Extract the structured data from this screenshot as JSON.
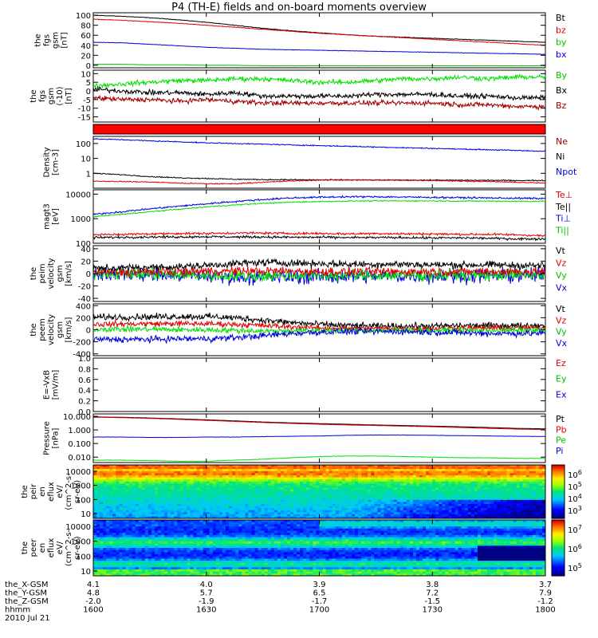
{
  "title": "P4 (TH-E) fields and on-board moments overview",
  "date_label": "2010 Jul 21",
  "colors": {
    "black": "#000000",
    "red": "#e00000",
    "dark_red": "#a00000",
    "green": "#00e000",
    "blue": "#0000e0"
  },
  "chart_data": [
    {
      "type": "line",
      "ylabel": [
        "the",
        "fgs",
        "gsm",
        "[nT]"
      ],
      "ylim": [
        -5,
        105
      ],
      "yticks": [
        "100",
        "80",
        "60",
        "40",
        "20",
        "0"
      ],
      "ytick_values": [
        100,
        80,
        60,
        40,
        20,
        0
      ],
      "legend": [
        {
          "label": "Bt",
          "color": "#000000"
        },
        {
          "label": "bz",
          "color": "#e00000"
        },
        {
          "label": "by",
          "color": "#00c000"
        },
        {
          "label": "bx",
          "color": "#0000e0"
        }
      ],
      "series": [
        {
          "color": "#000000",
          "noise": 0.5,
          "values": [
            100,
            98,
            95,
            91,
            86,
            80,
            74,
            69,
            65,
            61,
            58,
            56,
            54,
            52,
            50,
            48,
            46
          ]
        },
        {
          "color": "#e00000",
          "noise": 0.5,
          "values": [
            92,
            90,
            87,
            84,
            80,
            76,
            72,
            68,
            64,
            61,
            58,
            55,
            52,
            49,
            46,
            43,
            40
          ]
        },
        {
          "color": "#0000e0",
          "noise": 0.4,
          "values": [
            46,
            45,
            42,
            39,
            36,
            34,
            32,
            31,
            30,
            29,
            28,
            27,
            26,
            25,
            24,
            23,
            22
          ]
        },
        {
          "color": "#00c000",
          "noise": 0.2,
          "values": [
            2,
            2,
            1,
            1,
            0,
            0,
            -1,
            -1,
            -1,
            -1,
            -1,
            -1,
            -1,
            -1,
            -1,
            -1,
            -1
          ]
        }
      ]
    },
    {
      "type": "line",
      "ylabel": [
        "the",
        "fgs",
        "gsm",
        "(-10)",
        "[nT]"
      ],
      "ylim": [
        -18,
        12
      ],
      "yticks": [
        "10",
        "5",
        "0",
        "-5",
        "-10",
        "-15"
      ],
      "ytick_values": [
        10,
        5,
        0,
        -5,
        -10,
        -15
      ],
      "legend": [
        {
          "label": "By",
          "color": "#00c000"
        },
        {
          "label": "Bx",
          "color": "#000000"
        },
        {
          "label": "Bz",
          "color": "#a00000"
        }
      ],
      "series": [
        {
          "color": "#00e000",
          "noise": 1.2,
          "values": [
            3,
            4,
            5,
            6,
            6,
            7,
            7,
            6,
            5,
            5,
            6,
            7,
            7,
            8,
            7,
            8,
            8
          ]
        },
        {
          "color": "#000000",
          "noise": 1.2,
          "values": [
            1,
            0,
            -1,
            -1,
            -2,
            -1,
            -3,
            -3,
            -3,
            -3,
            -2,
            -2,
            -2,
            -3,
            -3,
            -4,
            -4
          ]
        },
        {
          "color": "#a00000",
          "noise": 1.2,
          "values": [
            -4,
            -5,
            -5,
            -6,
            -5,
            -6,
            -7,
            -7,
            -7,
            -7,
            -7,
            -7,
            -7,
            -8,
            -8,
            -9,
            -9
          ]
        }
      ]
    },
    {
      "type": "bar",
      "ylabel": [],
      "legend": [],
      "series": []
    },
    {
      "type": "line",
      "log": true,
      "ylabel": [
        "Density",
        "[cm-3]"
      ],
      "ylim": [
        0.1,
        300
      ],
      "yticks": [
        "100",
        "10",
        "1"
      ],
      "ytick_values": [
        100,
        10,
        1
      ],
      "legend": [
        {
          "label": "Ne",
          "color": "#a00000"
        },
        {
          "label": "Ni",
          "color": "#000000"
        },
        {
          "label": "Npot",
          "color": "#0000e0"
        }
      ],
      "series": [
        {
          "color": "#0000e0",
          "noise": 0.03,
          "values": [
            200,
            180,
            150,
            130,
            110,
            100,
            90,
            80,
            72,
            65,
            58,
            52,
            47,
            42,
            38,
            34,
            30
          ]
        },
        {
          "color": "#000000",
          "noise": 0.03,
          "values": [
            1.0,
            0.8,
            0.6,
            0.5,
            0.45,
            0.4,
            0.38,
            0.37,
            0.36,
            0.36,
            0.35,
            0.35,
            0.35,
            0.34,
            0.34,
            0.33,
            0.33
          ]
        },
        {
          "color": "#e00000",
          "noise": 0.03,
          "values": [
            0.3,
            0.28,
            0.26,
            0.22,
            0.2,
            0.2,
            0.25,
            0.3,
            0.35,
            0.36,
            0.35,
            0.34,
            0.33,
            0.3,
            0.28,
            0.25,
            0.22
          ]
        }
      ]
    },
    {
      "type": "line",
      "log": true,
      "ylabel": [
        "magt3",
        "[eV]"
      ],
      "ylim": [
        100,
        15000
      ],
      "yticks": [
        "10000",
        "1000",
        "100"
      ],
      "ytick_values": [
        10000,
        1000,
        100
      ],
      "legend": [
        {
          "label": "Te⊥",
          "color": "#e00000"
        },
        {
          "label": "Te||",
          "color": "#000000"
        },
        {
          "label": "Ti⊥",
          "color": "#0000e0"
        },
        {
          "label": "Ti||",
          "color": "#00c000"
        }
      ],
      "series": [
        {
          "color": "#0000e0",
          "noise": 0.03,
          "values": [
            1500,
            1900,
            2500,
            3200,
            4000,
            5000,
            6000,
            7000,
            7500,
            7800,
            7800,
            7600,
            7400,
            7200,
            7000,
            6800,
            6600
          ]
        },
        {
          "color": "#00e000",
          "noise": 0.02,
          "values": [
            1200,
            1500,
            1900,
            2400,
            3000,
            3600,
            4200,
            4700,
            5000,
            5200,
            5300,
            5300,
            5300,
            5200,
            5200,
            5100,
            5100
          ]
        },
        {
          "color": "#e00000",
          "noise": 0.04,
          "values": [
            220,
            230,
            240,
            250,
            250,
            260,
            260,
            250,
            250,
            240,
            250,
            240,
            240,
            230,
            230,
            220,
            200
          ]
        },
        {
          "color": "#000000",
          "noise": 0.04,
          "values": [
            170,
            175,
            180,
            180,
            185,
            180,
            180,
            175,
            175,
            170,
            170,
            170,
            165,
            165,
            160,
            150,
            150
          ]
        }
      ]
    },
    {
      "type": "line",
      "ylabel": [
        "the",
        "peim",
        "velocity",
        "gsm",
        "[km/s]"
      ],
      "ylim": [
        -45,
        45
      ],
      "yticks": [
        "40",
        "20",
        "0",
        "-20",
        "-40"
      ],
      "ytick_values": [
        40,
        20,
        0,
        -20,
        -40
      ],
      "legend": [
        {
          "label": "Vt",
          "color": "#000000"
        },
        {
          "label": "Vz",
          "color": "#e00000"
        },
        {
          "label": "Vy",
          "color": "#00c000"
        },
        {
          "label": "Vx",
          "color": "#0000e0"
        }
      ],
      "series": [
        {
          "color": "#0000e0",
          "noise": 10,
          "values": [
            0,
            0,
            -2,
            -3,
            -4,
            -6,
            -6,
            -5,
            -5,
            -4,
            -4,
            -4,
            -4,
            -3,
            -3,
            -3,
            -3
          ]
        },
        {
          "color": "#00e000",
          "noise": 8,
          "values": [
            0,
            0,
            -1,
            -2,
            -3,
            -4,
            -4,
            -3,
            -3,
            -3,
            -3,
            -3,
            -2,
            -2,
            -2,
            -2,
            -2
          ]
        },
        {
          "color": "#e00000",
          "noise": 6,
          "values": [
            2,
            2,
            3,
            3,
            4,
            4,
            4,
            4,
            3,
            3,
            3,
            3,
            3,
            3,
            3,
            3,
            3
          ]
        },
        {
          "color": "#000000",
          "noise": 5,
          "values": [
            8,
            9,
            10,
            11,
            13,
            16,
            18,
            17,
            16,
            15,
            15,
            15,
            14,
            14,
            14,
            13,
            13
          ]
        }
      ]
    },
    {
      "type": "line",
      "ylabel": [
        "the",
        "peem",
        "velocity",
        "gsm",
        "[km/s]"
      ],
      "ylim": [
        -430,
        430
      ],
      "yticks": [
        "400",
        "200",
        "0",
        "-200",
        "-400"
      ],
      "ytick_values": [
        400,
        200,
        0,
        -200,
        -400
      ],
      "legend": [
        {
          "label": "Vt",
          "color": "#000000"
        },
        {
          "label": "Vz",
          "color": "#e00000"
        },
        {
          "label": "Vy",
          "color": "#00c000"
        },
        {
          "label": "Vx",
          "color": "#0000e0"
        }
      ],
      "series": [
        {
          "color": "#000000",
          "noise": 45,
          "values": [
            210,
            210,
            215,
            220,
            220,
            200,
            160,
            120,
            90,
            70,
            60,
            60,
            60,
            70,
            70,
            70,
            70
          ]
        },
        {
          "color": "#e00000",
          "noise": 40,
          "values": [
            90,
            95,
            100,
            100,
            100,
            90,
            70,
            50,
            30,
            20,
            20,
            20,
            20,
            30,
            30,
            30,
            30
          ]
        },
        {
          "color": "#00e000",
          "noise": 40,
          "values": [
            10,
            10,
            10,
            0,
            0,
            -10,
            -20,
            -20,
            -10,
            -10,
            -10,
            -10,
            -10,
            -10,
            -10,
            -10,
            -10
          ]
        },
        {
          "color": "#0000e0",
          "noise": 45,
          "values": [
            -160,
            -160,
            -160,
            -150,
            -150,
            -130,
            -100,
            -60,
            -40,
            -30,
            -30,
            -30,
            -40,
            -50,
            -60,
            -60,
            -60
          ]
        }
      ]
    },
    {
      "type": "line",
      "ylabel": [
        "E=-VxB",
        "[mV/m]"
      ],
      "ylim": [
        0,
        1
      ],
      "yticks": [
        "1.0",
        "0.8",
        "0.6",
        "0.4",
        "0.2",
        "0.0"
      ],
      "ytick_values": [
        1.0,
        0.8,
        0.6,
        0.4,
        0.2,
        0.0
      ],
      "legend": [
        {
          "label": "Ez",
          "color": "#e00000"
        },
        {
          "label": "Ey",
          "color": "#00c000"
        },
        {
          "label": "Ex",
          "color": "#0000e0"
        }
      ],
      "series": []
    },
    {
      "type": "line",
      "log": true,
      "ylabel": [
        "Pressure",
        "[nPa]"
      ],
      "ylim": [
        0.004,
        15
      ],
      "yticks": [
        "10.000",
        "1.000",
        "0.100",
        "0.010"
      ],
      "ytick_values": [
        10,
        1,
        0.1,
        0.01
      ],
      "legend": [
        {
          "label": "Pt",
          "color": "#000000"
        },
        {
          "label": "Pb",
          "color": "#e00000"
        },
        {
          "label": "Pe",
          "color": "#00c000"
        },
        {
          "label": "Pi",
          "color": "#0000e0"
        }
      ],
      "series": [
        {
          "color": "#000000",
          "noise": 0.005,
          "values": [
            9,
            8.5,
            7.5,
            6.5,
            5.5,
            4.6,
            3.8,
            3.3,
            2.9,
            2.6,
            2.3,
            2.1,
            1.9,
            1.7,
            1.5,
            1.3,
            1.2
          ]
        },
        {
          "color": "#e00000",
          "noise": 0.005,
          "values": [
            8.5,
            8,
            7,
            6,
            5,
            4.2,
            3.5,
            3,
            2.6,
            2.3,
            2.1,
            1.9,
            1.7,
            1.5,
            1.3,
            1.15,
            1.05
          ]
        },
        {
          "color": "#0000e0",
          "noise": 0.01,
          "values": [
            0.3,
            0.3,
            0.28,
            0.28,
            0.3,
            0.3,
            0.32,
            0.34,
            0.36,
            0.4,
            0.42,
            0.42,
            0.4,
            0.38,
            0.36,
            0.34,
            0.33
          ]
        },
        {
          "color": "#00e000",
          "noise": 0.015,
          "values": [
            0.006,
            0.006,
            0.0055,
            0.005,
            0.005,
            0.006,
            0.007,
            0.009,
            0.011,
            0.012,
            0.012,
            0.011,
            0.01,
            0.009,
            0.009,
            0.008,
            0.008
          ]
        }
      ]
    },
    {
      "type": "heatmap",
      "ylabel": [
        "the",
        "peir",
        "en",
        "eflux",
        "eV/",
        "(cm^2-s-",
        "sr-eV)"
      ],
      "yticks": [
        "10000",
        "1000",
        "100",
        "10"
      ],
      "colorbar_ticks": [
        "10^6",
        "10^5",
        "10^4",
        "10^3"
      ],
      "colorbar_range": [
        3,
        6.5
      ]
    },
    {
      "type": "heatmap",
      "ylabel": [
        "the",
        "peer",
        "en",
        "eflux",
        "eV/",
        "(cm^2-s-",
        "sr-eV)"
      ],
      "yticks": [
        "10000",
        "1000",
        "100",
        "10"
      ],
      "colorbar_ticks": [
        "10^7",
        "10^6",
        "10^5"
      ],
      "colorbar_range": [
        4.5,
        7.5
      ]
    }
  ],
  "x_axis": {
    "labels": [
      "1600",
      "1630",
      "1700",
      "1730",
      "1800"
    ],
    "rows": [
      {
        "name": "the_X-GSM",
        "values": [
          "4.1",
          "4.0",
          "3.9",
          "3.8",
          "3.7"
        ]
      },
      {
        "name": "the_Y-GSM",
        "values": [
          "4.8",
          "5.7",
          "6.5",
          "7.2",
          "7.9"
        ]
      },
      {
        "name": "the_Z-GSM",
        "values": [
          "-2.0",
          "-1.9",
          "-1.7",
          "-1.5",
          "-1.2"
        ]
      },
      {
        "name": "hhmm",
        "values": [
          "1600",
          "1630",
          "1700",
          "1730",
          "1800"
        ]
      }
    ]
  }
}
